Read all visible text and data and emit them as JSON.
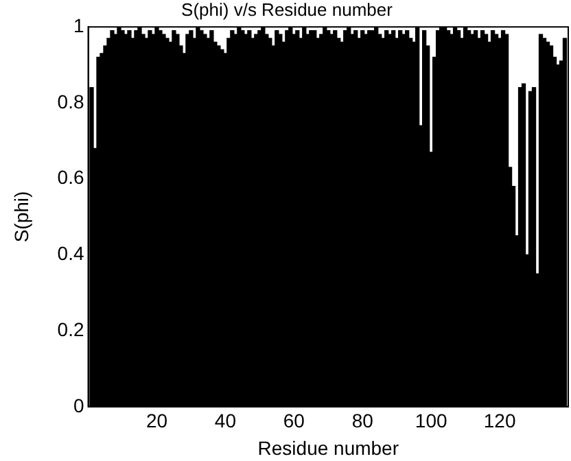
{
  "chart_data": {
    "type": "bar",
    "title": "S(phi) v/s Residue number",
    "xlabel": "Residue number",
    "ylabel": "S(phi)",
    "x": [
      1,
      2,
      3,
      4,
      5,
      6,
      7,
      8,
      9,
      10,
      11,
      12,
      13,
      14,
      15,
      16,
      17,
      18,
      19,
      20,
      21,
      22,
      23,
      24,
      25,
      26,
      27,
      28,
      29,
      30,
      31,
      32,
      33,
      34,
      35,
      36,
      37,
      38,
      39,
      40,
      41,
      42,
      43,
      44,
      45,
      46,
      47,
      48,
      49,
      50,
      51,
      52,
      53,
      54,
      55,
      56,
      57,
      58,
      59,
      60,
      61,
      62,
      63,
      64,
      65,
      66,
      67,
      68,
      69,
      70,
      71,
      72,
      73,
      74,
      75,
      76,
      77,
      78,
      79,
      80,
      81,
      82,
      83,
      84,
      85,
      86,
      87,
      88,
      89,
      90,
      91,
      92,
      93,
      94,
      95,
      96,
      97,
      98,
      99,
      100,
      101,
      102,
      103,
      104,
      105,
      106,
      107,
      108,
      109,
      110,
      111,
      112,
      113,
      114,
      115,
      116,
      117,
      118,
      119,
      120,
      121,
      122,
      123,
      124,
      125,
      126,
      127,
      128,
      129,
      130,
      131,
      132,
      133,
      134,
      135,
      136,
      137,
      138,
      139
    ],
    "values": [
      0.84,
      0.68,
      0.92,
      0.93,
      0.95,
      0.97,
      0.99,
      0.98,
      1,
      0.99,
      0.98,
      0.99,
      0.97,
      0.99,
      1,
      0.98,
      0.97,
      0.99,
      0.98,
      1,
      0.99,
      0.98,
      0.97,
      0.96,
      0.99,
      0.98,
      0.95,
      0.93,
      0.98,
      0.99,
      0.97,
      1,
      0.99,
      0.98,
      0.97,
      0.99,
      0.96,
      0.95,
      0.94,
      0.93,
      0.97,
      0.99,
      0.98,
      1,
      0.99,
      0.98,
      0.99,
      0.97,
      0.98,
      0.99,
      1,
      0.98,
      0.97,
      0.95,
      0.99,
      0.98,
      0.96,
      0.99,
      1,
      0.98,
      0.99,
      0.97,
      1,
      0.98,
      0.99,
      0.99,
      0.97,
      0.98,
      1,
      0.99,
      0.98,
      0.99,
      0.97,
      0.96,
      0.99,
      1,
      0.98,
      0.99,
      0.97,
      0.99,
      0.98,
      0.99,
      0.99,
      1,
      0.98,
      0.97,
      0.99,
      0.98,
      0.99,
      0.97,
      0.99,
      0.98,
      0.99,
      0.97,
      0.96,
      1,
      0.74,
      0.99,
      0.95,
      0.67,
      0.92,
      0.99,
      1,
      1,
      0.99,
      0.98,
      1,
      0.99,
      0.97,
      1,
      0.99,
      0.98,
      0.99,
      0.97,
      0.99,
      0.98,
      0.96,
      0.99,
      0.98,
      0.97,
      0.99,
      0.98,
      0.63,
      0.58,
      0.45,
      0.84,
      0.85,
      0.4,
      0.83,
      0.84,
      0.35,
      0.98,
      0.97,
      0.96,
      0.95,
      0.92,
      0.9,
      0.91,
      0.97
    ],
    "color": "#000000",
    "xlim": [
      0,
      140
    ],
    "xticks": [
      20,
      40,
      60,
      80,
      100,
      120
    ],
    "ylim": [
      0,
      1
    ],
    "yticks": [
      0,
      0.2,
      0.4,
      0.6,
      0.8,
      1
    ],
    "grid": false,
    "legend": false
  }
}
